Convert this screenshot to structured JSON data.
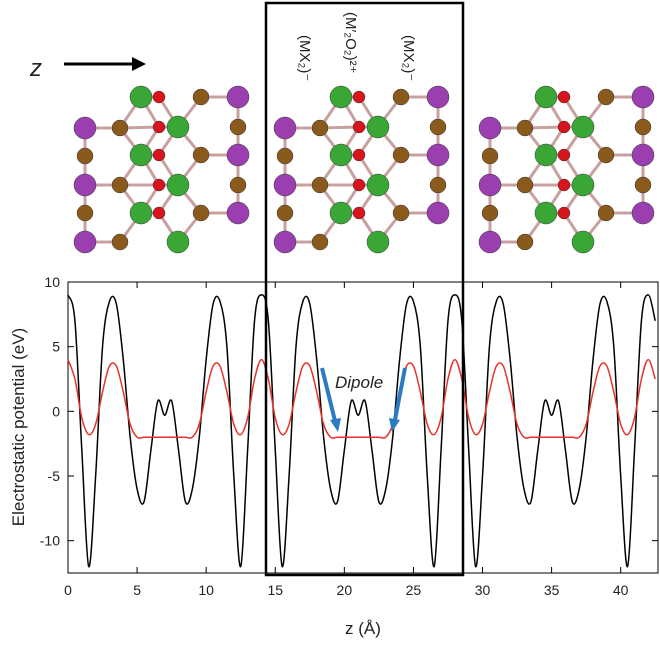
{
  "chart_data": {
    "type": "line",
    "x_label": "z (Å)",
    "y_label": "Electrostatic potential (eV)",
    "annotation": "Dipole",
    "direction_label": "z",
    "layer_labels": [
      "(MX₂)⁻",
      "(M′₂O₂)²⁺",
      "(MX₂)⁻"
    ],
    "x": [
      0,
      0.5,
      1,
      1.5,
      2,
      2.5,
      3,
      3.5,
      4,
      4.5,
      5,
      5.5,
      6,
      6.5,
      7,
      7.5,
      8,
      8.5,
      9,
      9.5,
      10,
      10.5,
      11,
      11.5,
      12,
      12.5,
      13,
      13.5,
      14,
      14.5,
      15,
      15.5,
      16,
      16.5,
      17,
      17.5,
      18,
      18.5,
      19,
      19.5,
      20,
      20.5,
      21,
      21.5,
      22,
      22.5,
      23,
      23.5,
      24,
      24.5,
      25,
      25.5,
      26,
      26.5,
      27,
      27.5,
      28,
      28.5,
      29,
      29.5,
      30,
      30.5,
      31,
      31.5,
      32,
      32.5,
      33,
      33.5,
      34,
      34.5,
      35,
      35.5,
      36,
      36.5,
      37,
      37.5,
      38,
      38.5,
      39,
      39.5,
      40,
      40.5,
      41,
      41.5,
      42,
      42.5
    ],
    "series": [
      {
        "color": "#000000",
        "values": [
          9,
          7,
          -3,
          -12,
          -5,
          5,
          8.5,
          8.3,
          4,
          -2,
          -6,
          -7,
          -3,
          0.8,
          -0.3,
          0.8,
          -3,
          -7,
          -6,
          -2,
          4,
          8.3,
          8.5,
          5,
          -5,
          -12,
          -3,
          7,
          9,
          7,
          -3,
          -12,
          -5,
          5,
          8.5,
          8.3,
          4,
          -2,
          -6,
          -7,
          -3,
          0.8,
          -0.3,
          0.8,
          -3,
          -7,
          -6,
          -2,
          4,
          8.3,
          8.5,
          5,
          -5,
          -12,
          -3,
          7,
          9,
          7,
          -3,
          -12,
          -5,
          5,
          8.5,
          8.3,
          4,
          -2,
          -6,
          -7,
          -3,
          0.8,
          -0.3,
          0.8,
          -3,
          -7,
          -6,
          -2,
          4,
          8.3,
          8.5,
          5,
          -5,
          -12,
          -3,
          7,
          9,
          7
        ]
      },
      {
        "color": "#e8312a",
        "values": [
          4,
          2.5,
          -0.5,
          -1.8,
          -1,
          1.5,
          3.5,
          3.5,
          1.5,
          -1,
          -2,
          -2,
          -2,
          -2,
          -2,
          -2,
          -2,
          -2,
          -2,
          -1,
          1.5,
          3.5,
          3.5,
          1.5,
          -1,
          -1.8,
          -0.5,
          2.5,
          4,
          2.5,
          -0.5,
          -1.8,
          -1,
          1.5,
          3.5,
          3.5,
          1.5,
          -1,
          -2,
          -2,
          -2,
          -2,
          -2,
          -2,
          -2,
          -2,
          -2,
          -1,
          1.5,
          3.5,
          3.5,
          1.5,
          -1,
          -1.8,
          -0.5,
          2.5,
          4,
          2.5,
          -0.5,
          -1.8,
          -1,
          1.5,
          3.5,
          3.5,
          1.5,
          -1,
          -2,
          -2,
          -2,
          -2,
          -2,
          -2,
          -2,
          -2,
          -2,
          -1,
          1.5,
          3.5,
          3.5,
          1.5,
          -1,
          -1.8,
          -0.5,
          2.5,
          4,
          2.5
        ]
      }
    ],
    "xlim": [
      0,
      42.7
    ],
    "ylim": [
      -12.5,
      10
    ],
    "xticks": [
      0,
      5,
      10,
      15,
      20,
      25,
      30,
      35,
      40
    ],
    "yticks": [
      -10,
      -5,
      0,
      5,
      10
    ]
  }
}
